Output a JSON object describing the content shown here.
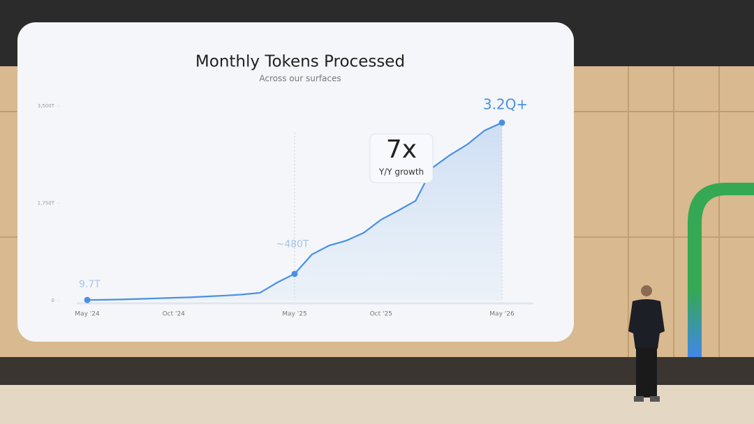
{
  "chart_data": {
    "type": "line",
    "title": "Monthly Tokens Processed",
    "subtitle": "Across our surfaces",
    "categories": [
      "May '24",
      null,
      null,
      null,
      null,
      "Oct '24",
      null,
      null,
      null,
      null,
      null,
      null,
      "May '25",
      null,
      null,
      null,
      null,
      "Oct '25",
      null,
      null,
      null,
      null,
      null,
      null,
      "May '26"
    ],
    "values": [
      9.7,
      14,
      20,
      30,
      40,
      50,
      60,
      75,
      90,
      110,
      140,
      326,
      480,
      830,
      990,
      1080,
      1220,
      1455,
      1620,
      1795,
      2395,
      2620,
      2810,
      3060,
      3200
    ],
    "value_labels": [
      "9.7T",
      null,
      null,
      null,
      null,
      null,
      null,
      null,
      null,
      null,
      null,
      null,
      "~480T",
      null,
      null,
      null,
      null,
      null,
      null,
      null,
      null,
      null,
      null,
      null,
      "3.2Q+"
    ],
    "color": "#4a90e2",
    "ylim": [
      0,
      3500
    ],
    "yticks": [
      0,
      {
        "value": 1750,
        "label": "1,750T"
      },
      {
        "value": 3500,
        "label": "3,500T"
      }
    ],
    "annotation": {
      "value": "7x",
      "text": "Y/Y growth"
    }
  }
}
